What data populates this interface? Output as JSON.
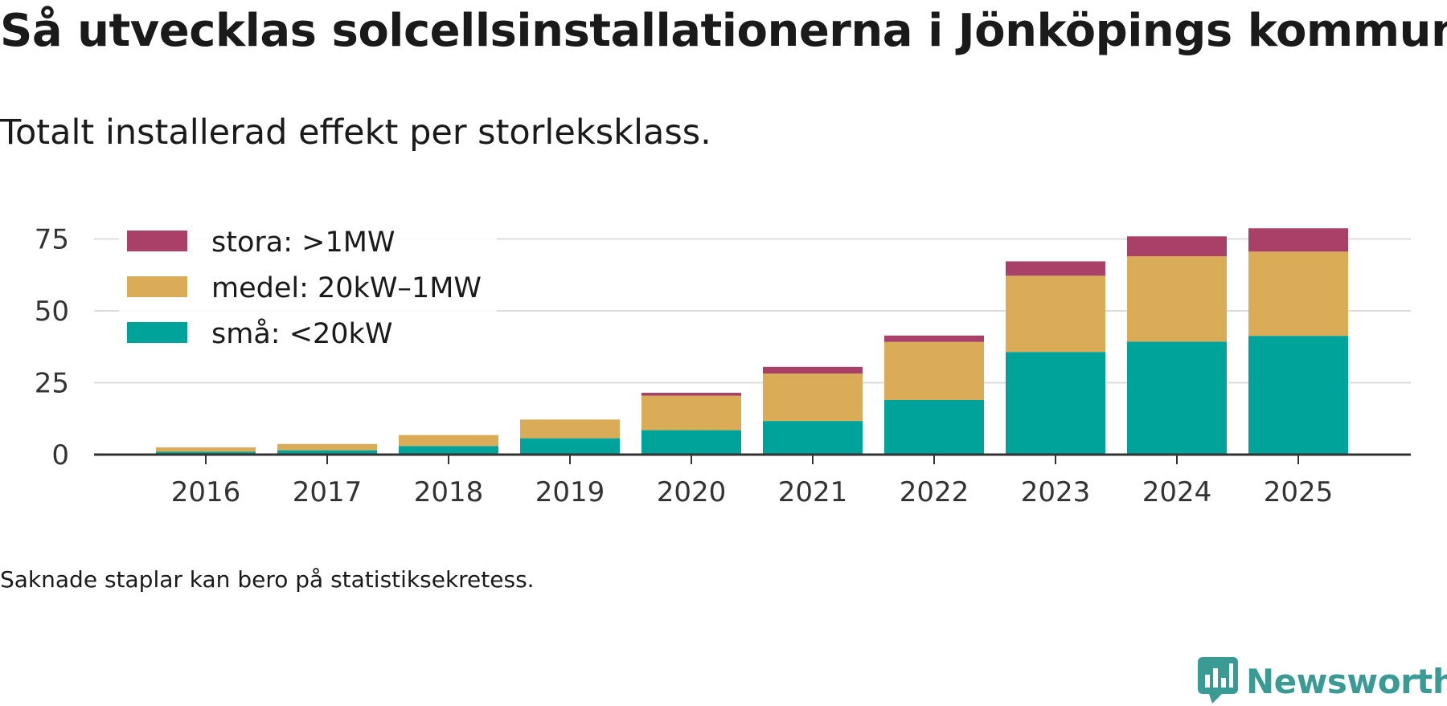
{
  "title": "Så utvecklas solcellsinstallationerna i Jönköpings kommun",
  "subtitle": "Totalt installerad effekt per storleksklass.",
  "footnote": "Saknade staplar kan bero på statistiksekretess.",
  "brand": {
    "name": "Newsworthy",
    "icon": "newsworthy-logo-icon",
    "color": "#3a9b95"
  },
  "chart_data": {
    "type": "bar",
    "stacked": true,
    "title": "Så utvecklas solcellsinstallationerna i Jönköpings kommun",
    "subtitle": "Totalt installerad effekt per storleksklass.",
    "xlabel": "",
    "ylabel": "",
    "ylim": [
      0,
      80
    ],
    "yticks": [
      0,
      25,
      50,
      75
    ],
    "grid": true,
    "legend_position": "top-left",
    "categories": [
      "2016",
      "2017",
      "2018",
      "2019",
      "2020",
      "2021",
      "2022",
      "2023",
      "2024",
      "2025"
    ],
    "series": [
      {
        "name": "små: <20kW",
        "color": "#00a39a",
        "values": [
          1.0,
          1.5,
          3.0,
          5.7,
          8.5,
          11.7,
          19.0,
          35.7,
          39.3,
          41.3
        ]
      },
      {
        "name": "medel: 20kW–1MW",
        "color": "#dbac57",
        "values": [
          1.5,
          2.2,
          3.8,
          6.5,
          12.0,
          16.5,
          20.2,
          26.5,
          29.7,
          29.3
        ]
      },
      {
        "name": "stora: >1MW",
        "color": "#a84067",
        "values": [
          0,
          0,
          0,
          0,
          1.0,
          2.3,
          2.2,
          5.0,
          6.9,
          8.1
        ]
      }
    ],
    "legend_order": [
      "stora: >1MW",
      "medel: 20kW–1MW",
      "små: <20kW"
    ]
  }
}
